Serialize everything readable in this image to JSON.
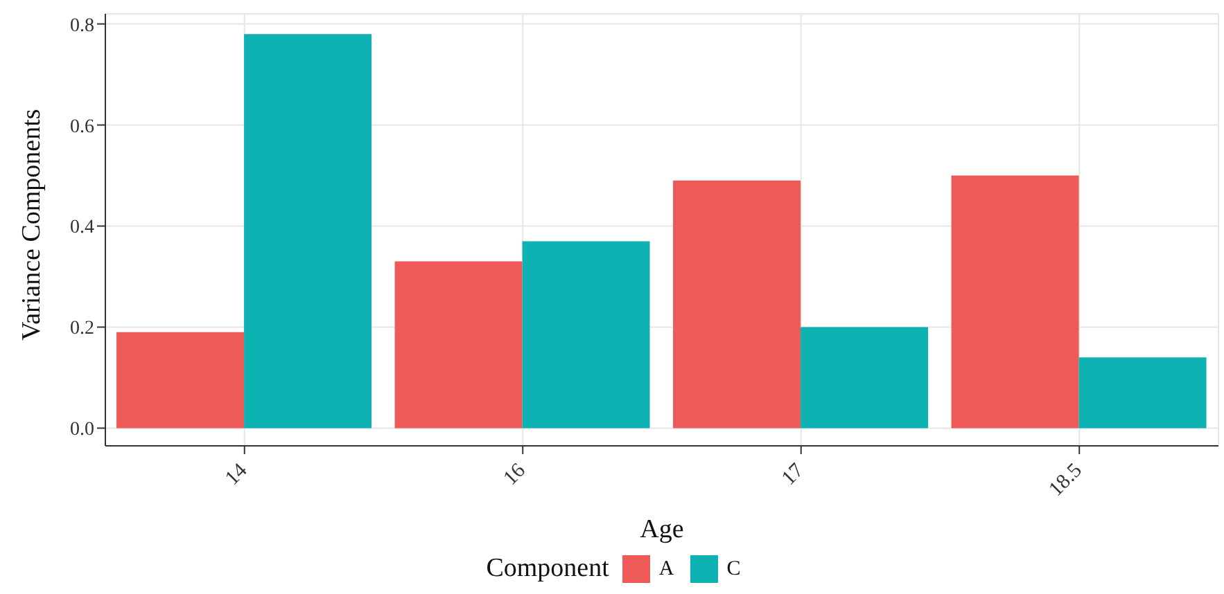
{
  "chart_data": {
    "type": "bar",
    "xlabel": "Age",
    "ylabel": "Variance Components",
    "legend_title": "Component",
    "categories": [
      "14",
      "16",
      "17",
      "18.5"
    ],
    "series": [
      {
        "name": "A",
        "color": "#ee5a57",
        "values": [
          0.19,
          0.33,
          0.49,
          0.5
        ]
      },
      {
        "name": "C",
        "color": "#0fb2b2",
        "values": [
          0.78,
          0.37,
          0.2,
          0.14
        ]
      }
    ],
    "ylim": [
      -0.035,
      0.82
    ],
    "yticks": [
      {
        "value": 0,
        "label": "0.0"
      },
      0.2,
      0.4,
      0.6,
      0.8
    ],
    "grid": true,
    "legend": "bottom"
  }
}
